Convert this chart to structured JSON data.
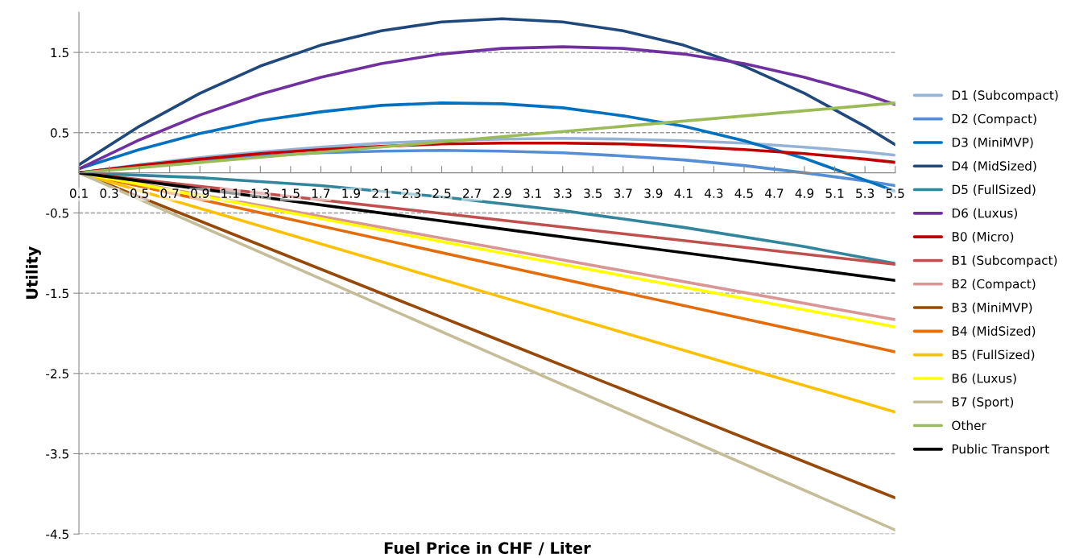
{
  "chart_data": {
    "type": "line",
    "xlabel": "Fuel Price in CHF / Liter",
    "ylabel": "Utility",
    "xlim": [
      0.1,
      5.5
    ],
    "xticks": [
      0.1,
      0.3,
      0.5,
      0.7,
      0.9,
      1.1,
      1.3,
      1.5,
      1.7,
      1.9,
      2.1,
      2.3,
      2.5,
      2.7,
      2.9,
      3.1,
      3.3,
      3.5,
      3.7,
      3.9,
      4.1,
      4.3,
      4.5,
      4.7,
      4.9,
      5.1,
      5.3,
      5.5
    ],
    "ylim": [
      -4.5,
      2.0
    ],
    "yticks": [
      -4.5,
      -3.5,
      -2.5,
      -1.5,
      -0.5,
      0.5,
      1.5
    ],
    "grid": "y",
    "legend": "right",
    "line_style": "solid",
    "series": [
      {
        "name": "D1 (Subcompact)",
        "color": "#95b3d7",
        "x": [
          0.1,
          0.5,
          0.9,
          1.3,
          1.7,
          2.1,
          2.5,
          2.9,
          3.3,
          3.7,
          4.1,
          4.5,
          4.9,
          5.3,
          5.5
        ],
        "values": [
          0.0,
          0.1,
          0.19,
          0.26,
          0.32,
          0.37,
          0.4,
          0.42,
          0.43,
          0.42,
          0.4,
          0.37,
          0.32,
          0.26,
          0.22
        ]
      },
      {
        "name": "D2 (Compact)",
        "color": "#558ed5",
        "x": [
          0.1,
          0.5,
          0.9,
          1.3,
          1.7,
          2.1,
          2.5,
          2.9,
          3.3,
          3.7,
          4.1,
          4.5,
          4.9,
          5.3,
          5.5
        ],
        "values": [
          0.0,
          0.09,
          0.16,
          0.21,
          0.25,
          0.27,
          0.28,
          0.27,
          0.25,
          0.21,
          0.16,
          0.09,
          0.0,
          -0.1,
          -0.16
        ]
      },
      {
        "name": "D3 (MiniMVP)",
        "color": "#0070c0",
        "x": [
          0.1,
          0.5,
          0.9,
          1.3,
          1.7,
          2.1,
          2.5,
          2.9,
          3.3,
          3.7,
          4.1,
          4.5,
          4.9,
          5.3,
          5.5
        ],
        "values": [
          0.05,
          0.29,
          0.49,
          0.65,
          0.76,
          0.84,
          0.87,
          0.86,
          0.81,
          0.71,
          0.58,
          0.4,
          0.18,
          -0.09,
          -0.23
        ]
      },
      {
        "name": "D4 (MidSized)",
        "color": "#1f497d",
        "x": [
          0.1,
          0.5,
          0.9,
          1.3,
          1.7,
          2.1,
          2.5,
          2.9,
          3.3,
          3.7,
          4.1,
          4.5,
          4.9,
          5.3,
          5.5
        ],
        "values": [
          0.1,
          0.58,
          0.99,
          1.33,
          1.59,
          1.77,
          1.88,
          1.92,
          1.88,
          1.77,
          1.59,
          1.33,
          0.99,
          0.58,
          0.35
        ]
      },
      {
        "name": "D5 (FullSized)",
        "color": "#31859c",
        "x": [
          0.1,
          0.9,
          1.7,
          2.5,
          3.3,
          4.1,
          4.9,
          5.5
        ],
        "values": [
          0.0,
          -0.06,
          -0.16,
          -0.3,
          -0.47,
          -0.68,
          -0.92,
          -1.13
        ]
      },
      {
        "name": "D6 (Luxus)",
        "color": "#7030a0",
        "x": [
          0.1,
          0.5,
          0.9,
          1.3,
          1.7,
          2.1,
          2.5,
          2.9,
          3.3,
          3.7,
          4.1,
          4.5,
          4.9,
          5.3,
          5.5
        ],
        "values": [
          0.05,
          0.41,
          0.72,
          0.98,
          1.19,
          1.36,
          1.48,
          1.55,
          1.57,
          1.55,
          1.48,
          1.36,
          1.19,
          0.98,
          0.85
        ]
      },
      {
        "name": "B0 (Micro)",
        "color": "#c00000",
        "x": [
          0.1,
          0.5,
          0.9,
          1.3,
          1.7,
          2.1,
          2.5,
          2.9,
          3.3,
          3.7,
          4.1,
          4.5,
          4.9,
          5.3,
          5.5
        ],
        "values": [
          0.0,
          0.09,
          0.17,
          0.24,
          0.29,
          0.33,
          0.36,
          0.37,
          0.37,
          0.36,
          0.33,
          0.29,
          0.24,
          0.17,
          0.13
        ]
      },
      {
        "name": "B1 (Subcompact)",
        "color": "#c0504d",
        "x": [
          0.1,
          2.9,
          5.5
        ],
        "values": [
          0.0,
          -0.59,
          -1.14
        ]
      },
      {
        "name": "B2 (Compact)",
        "color": "#d99694",
        "x": [
          0.1,
          2.9,
          5.5
        ],
        "values": [
          0.0,
          -0.95,
          -1.83
        ]
      },
      {
        "name": "B3 (MiniMVP)",
        "color": "#984807",
        "x": [
          0.1,
          2.9,
          5.5
        ],
        "values": [
          0.0,
          -2.1,
          -4.05
        ]
      },
      {
        "name": "B4 (MidSized)",
        "color": "#e46c0a",
        "x": [
          0.1,
          2.9,
          5.5
        ],
        "values": [
          0.0,
          -1.16,
          -2.23
        ]
      },
      {
        "name": "B5 (FullSized)",
        "color": "#ffc000",
        "x": [
          0.1,
          2.9,
          5.5
        ],
        "values": [
          0.0,
          -1.55,
          -2.98
        ]
      },
      {
        "name": "B6 (Luxus)",
        "color": "#ffff00",
        "x": [
          0.1,
          2.9,
          5.5
        ],
        "values": [
          0.0,
          -1.0,
          -1.92
        ]
      },
      {
        "name": "B7 (Sport)",
        "color": "#c4bd97",
        "x": [
          0.1,
          2.9,
          5.5
        ],
        "values": [
          0.0,
          -2.31,
          -4.45
        ]
      },
      {
        "name": "Other",
        "color": "#9bbb59",
        "x": [
          0.1,
          2.9,
          5.5
        ],
        "values": [
          0.0,
          0.45,
          0.87
        ]
      },
      {
        "name": "Public Transport",
        "color": "#000000",
        "x": [
          0.1,
          2.9,
          5.5
        ],
        "values": [
          0.0,
          -0.7,
          -1.34
        ]
      }
    ]
  }
}
